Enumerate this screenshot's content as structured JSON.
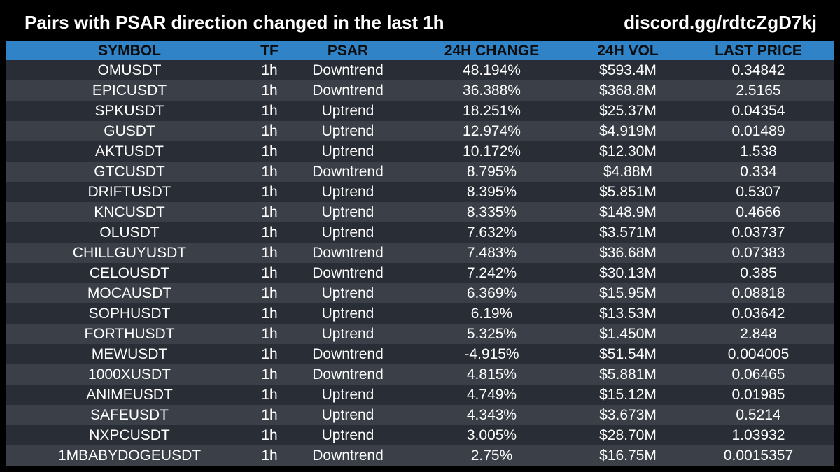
{
  "header": {
    "title": "Pairs with PSAR direction changed in the last 1h",
    "discord": "discord.gg/rdtcZgD7kj"
  },
  "table": {
    "columns": [
      "SYMBOL",
      "TF",
      "PSAR",
      "24H CHANGE",
      "24H VOL",
      "LAST PRICE"
    ],
    "rows": [
      [
        "OMUSDT",
        "1h",
        "Downtrend",
        "48.194%",
        "$593.4M",
        "0.34842"
      ],
      [
        "EPICUSDT",
        "1h",
        "Downtrend",
        "36.388%",
        "$368.8M",
        "2.5165"
      ],
      [
        "SPKUSDT",
        "1h",
        "Uptrend",
        "18.251%",
        "$25.37M",
        "0.04354"
      ],
      [
        "GUSDT",
        "1h",
        "Uptrend",
        "12.974%",
        "$4.919M",
        "0.01489"
      ],
      [
        "AKTUSDT",
        "1h",
        "Uptrend",
        "10.172%",
        "$12.30M",
        "1.538"
      ],
      [
        "GTCUSDT",
        "1h",
        "Downtrend",
        "8.795%",
        "$4.88M",
        "0.334"
      ],
      [
        "DRIFTUSDT",
        "1h",
        "Uptrend",
        "8.395%",
        "$5.851M",
        "0.5307"
      ],
      [
        "KNCUSDT",
        "1h",
        "Uptrend",
        "8.335%",
        "$148.9M",
        "0.4666"
      ],
      [
        "OLUSDT",
        "1h",
        "Uptrend",
        "7.632%",
        "$3.571M",
        "0.03737"
      ],
      [
        "CHILLGUYUSDT",
        "1h",
        "Downtrend",
        "7.483%",
        "$36.68M",
        "0.07383"
      ],
      [
        "CELOUSDT",
        "1h",
        "Downtrend",
        "7.242%",
        "$30.13M",
        "0.385"
      ],
      [
        "MOCAUSDT",
        "1h",
        "Uptrend",
        "6.369%",
        "$15.95M",
        "0.08818"
      ],
      [
        "SOPHUSDT",
        "1h",
        "Uptrend",
        "6.19%",
        "$13.53M",
        "0.03642"
      ],
      [
        "FORTHUSDT",
        "1h",
        "Uptrend",
        "5.325%",
        "$1.450M",
        "2.848"
      ],
      [
        "MEWUSDT",
        "1h",
        "Downtrend",
        "-4.915%",
        "$51.54M",
        "0.004005"
      ],
      [
        "1000XUSDT",
        "1h",
        "Downtrend",
        "4.815%",
        "$5.881M",
        "0.06465"
      ],
      [
        "ANIMEUSDT",
        "1h",
        "Uptrend",
        "4.749%",
        "$15.12M",
        "0.01985"
      ],
      [
        "SAFEUSDT",
        "1h",
        "Uptrend",
        "4.343%",
        "$3.673M",
        "0.5214"
      ],
      [
        "NXPCUSDT",
        "1h",
        "Uptrend",
        "3.005%",
        "$28.70M",
        "1.03932"
      ],
      [
        "1MBABYDOGEUSDT",
        "1h",
        "Downtrend",
        "2.75%",
        "$16.75M",
        "0.0015357"
      ]
    ]
  },
  "colors": {
    "background": "#000000",
    "header_row": "#2f83c6",
    "row_odd": "#292d35",
    "row_even": "#3a3f48",
    "text": "#ffffff"
  }
}
